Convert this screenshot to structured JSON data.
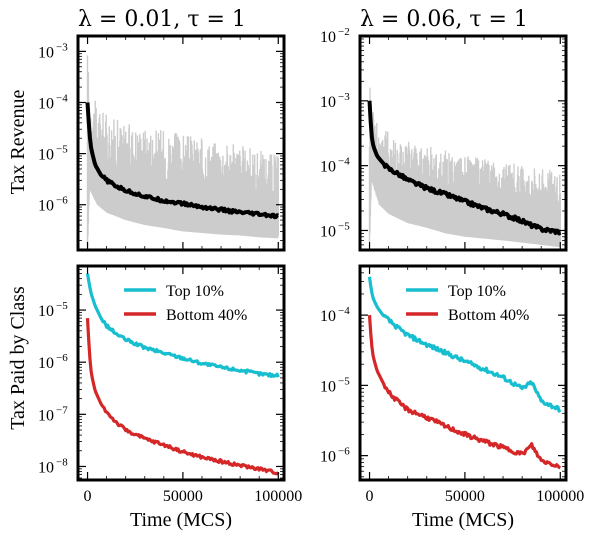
{
  "figure": {
    "ylabel_top": "Tax Revenue",
    "ylabel_bottom": "Tax Paid by Class",
    "xlabel": "Time (MCS)"
  },
  "chart_data": [
    {
      "type": "line",
      "title": "λ = 0.01, τ = 1",
      "xlabel": "",
      "ylabel": "Tax Revenue",
      "yscale": "log",
      "xlim": [
        -5000,
        103000
      ],
      "ylim": [
        1.3e-07,
        0.002
      ],
      "x_ticks": [
        0,
        50000,
        100000
      ],
      "y_ticks": [
        {
          "mant": "10",
          "exp": "-3",
          "value": 0.001
        },
        {
          "mant": "10",
          "exp": "-4",
          "value": 0.0001
        },
        {
          "mant": "10",
          "exp": "-5",
          "value": 1e-05
        },
        {
          "mant": "10",
          "exp": "-6",
          "value": 1e-06
        }
      ],
      "series": [
        {
          "role": "band",
          "color": "#cccccc",
          "x": [
            0,
            1000,
            5000,
            10000,
            20000,
            30000,
            40000,
            50000,
            60000,
            70000,
            80000,
            90000,
            100000
          ],
          "lower": [
            1e-07,
            2e-06,
            1e-06,
            7e-07,
            5e-07,
            4e-07,
            3.5e-07,
            3e-07,
            2.8e-07,
            2.6e-07,
            2.5e-07,
            2.3e-07,
            2.2e-07
          ],
          "upper": [
            0.0015,
            0.0002,
            9e-05,
            6e-05,
            4e-05,
            3.5e-05,
            3e-05,
            2.5e-05,
            2e-05,
            1.8e-05,
            1.5e-05,
            1.2e-05,
            1e-05
          ]
        },
        {
          "role": "mean",
          "color": "#000000",
          "x": [
            0,
            1000,
            2000,
            4000,
            7000,
            10000,
            15000,
            20000,
            30000,
            40000,
            50000,
            60000,
            70000,
            80000,
            90000,
            100000
          ],
          "y": [
            0.0001,
            2.5e-05,
            1.2e-05,
            6e-06,
            3.8e-06,
            3e-06,
            2.3e-06,
            1.9e-06,
            1.45e-06,
            1.2e-06,
            1.05e-06,
            9e-07,
            8e-07,
            7e-07,
            6.5e-07,
            5.8e-07
          ]
        }
      ]
    },
    {
      "type": "line",
      "title": "λ = 0.06, τ = 1",
      "xlabel": "",
      "ylabel": "",
      "yscale": "log",
      "xlim": [
        -5000,
        103000
      ],
      "ylim": [
        5e-06,
        0.01
      ],
      "x_ticks": [
        0,
        50000,
        100000
      ],
      "y_ticks": [
        {
          "mant": "10",
          "exp": "-2",
          "value": 0.01
        },
        {
          "mant": "10",
          "exp": "-3",
          "value": 0.001
        },
        {
          "mant": "10",
          "exp": "-4",
          "value": 0.0001
        },
        {
          "mant": "10",
          "exp": "-5",
          "value": 1e-05
        }
      ],
      "series": [
        {
          "role": "band",
          "color": "#cccccc",
          "x": [
            0,
            1000,
            5000,
            10000,
            20000,
            30000,
            40000,
            50000,
            60000,
            70000,
            80000,
            90000,
            100000
          ],
          "lower": [
            5e-06,
            6e-05,
            2.5e-05,
            1.8e-05,
            1.3e-05,
            1.1e-05,
            9e-06,
            8e-06,
            7.5e-06,
            7e-06,
            6.5e-06,
            6e-06,
            5.5e-06
          ],
          "upper": [
            0.006,
            0.001,
            0.0005,
            0.00035,
            0.00025,
            0.0002,
            0.00018,
            0.00015,
            0.00013,
            0.00012,
            0.0001,
            9e-05,
            8e-05
          ]
        },
        {
          "role": "mean",
          "color": "#000000",
          "x": [
            0,
            1000,
            2000,
            4000,
            7000,
            10000,
            15000,
            20000,
            30000,
            40000,
            50000,
            60000,
            70000,
            80000,
            85000,
            90000,
            100000
          ],
          "y": [
            0.001,
            0.0003,
            0.0002,
            0.00014,
            0.00011,
            9e-05,
            7.5e-05,
            6e-05,
            4.5e-05,
            3.6e-05,
            2.8e-05,
            2.2e-05,
            1.8e-05,
            1.4e-05,
            1.2e-05,
            1.05e-05,
            9.5e-06
          ]
        }
      ]
    },
    {
      "type": "line",
      "title": "",
      "xlabel": "Time (MCS)",
      "ylabel": "Tax Paid by Class",
      "yscale": "log",
      "xlim": [
        -5000,
        103000
      ],
      "ylim": [
        5.5e-09,
        7e-05
      ],
      "x_ticks": [
        0,
        50000,
        100000
      ],
      "y_ticks": [
        {
          "mant": "10",
          "exp": "-5",
          "value": 1e-05
        },
        {
          "mant": "10",
          "exp": "-6",
          "value": 1e-06
        },
        {
          "mant": "10",
          "exp": "-7",
          "value": 1e-07
        },
        {
          "mant": "10",
          "exp": "-8",
          "value": 1e-08
        }
      ],
      "legend_position": "top-right",
      "series": [
        {
          "name": "Top 10%",
          "color": "#17becf",
          "x": [
            0,
            1000,
            2000,
            4000,
            7000,
            10000,
            15000,
            20000,
            30000,
            40000,
            50000,
            60000,
            70000,
            80000,
            90000,
            100000
          ],
          "y": [
            5e-05,
            3e-05,
            2e-05,
            1.2e-05,
            7e-06,
            5e-06,
            3.5e-06,
            2.7e-06,
            1.9e-06,
            1.5e-06,
            1.2e-06,
            9.5e-07,
            8e-07,
            7e-07,
            6e-07,
            5.5e-07
          ]
        },
        {
          "name": "Bottom 40%",
          "color": "#d62728",
          "x": [
            0,
            1000,
            2000,
            4000,
            7000,
            10000,
            15000,
            20000,
            30000,
            40000,
            50000,
            60000,
            70000,
            80000,
            90000,
            100000
          ],
          "y": [
            7e-06,
            1.5e-06,
            6e-07,
            2.8e-07,
            1.6e-07,
            1.1e-07,
            7e-08,
            5e-08,
            3.4e-08,
            2.6e-08,
            1.9e-08,
            1.5e-08,
            1.25e-08,
            1.05e-08,
            9e-09,
            7.5e-09
          ]
        }
      ]
    },
    {
      "type": "line",
      "title": "",
      "xlabel": "Time (MCS)",
      "ylabel": "",
      "yscale": "log",
      "xlim": [
        -5000,
        103000
      ],
      "ylim": [
        4.5e-07,
        0.0005
      ],
      "x_ticks": [
        0,
        50000,
        100000
      ],
      "y_ticks": [
        {
          "mant": "10",
          "exp": "-4",
          "value": 0.0001
        },
        {
          "mant": "10",
          "exp": "-5",
          "value": 1e-05
        },
        {
          "mant": "10",
          "exp": "-6",
          "value": 1e-06
        }
      ],
      "legend_position": "top-right",
      "series": [
        {
          "name": "Top 10%",
          "color": "#17becf",
          "x": [
            0,
            1000,
            2000,
            4000,
            7000,
            10000,
            15000,
            20000,
            30000,
            40000,
            50000,
            60000,
            70000,
            80000,
            85000,
            90000,
            100000
          ],
          "y": [
            0.00035,
            0.00022,
            0.00017,
            0.00013,
            0.0001,
            8.5e-05,
            6.5e-05,
            5.2e-05,
            3.8e-05,
            2.9e-05,
            2.2e-05,
            1.7e-05,
            1.3e-05,
            9e-06,
            1.1e-05,
            6e-06,
            4.5e-06
          ]
        },
        {
          "name": "Bottom 40%",
          "color": "#d62728",
          "x": [
            0,
            1000,
            2000,
            4000,
            7000,
            10000,
            15000,
            20000,
            30000,
            40000,
            50000,
            60000,
            70000,
            80000,
            85000,
            90000,
            100000
          ],
          "y": [
            0.0001,
            4e-05,
            2.5e-05,
            1.6e-05,
            1.1e-05,
            8e-06,
            5.8e-06,
            4.5e-06,
            3.5e-06,
            2.6e-06,
            2e-06,
            1.6e-06,
            1.3e-06,
            1.05e-06,
            1.4e-06,
            8.5e-07,
            7e-07
          ]
        }
      ]
    }
  ]
}
